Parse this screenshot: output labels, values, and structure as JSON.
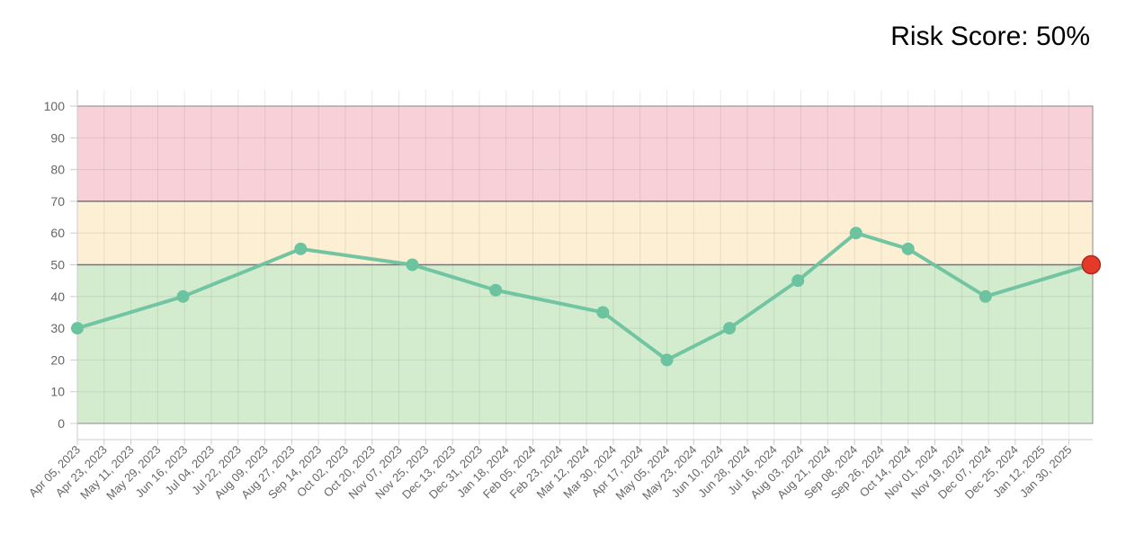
{
  "header": {
    "risk_label": "Risk Score: 50%"
  },
  "colors": {
    "zone_red": "#f8d0d8",
    "zone_yellow": "#fcefd3",
    "zone_green": "#d3ecce",
    "line": "#6cc3a0",
    "point": "#6cc3a0",
    "current_point": "#e53a2a",
    "threshold_line": "#777777",
    "grid": "#dddddd"
  },
  "chart_data": {
    "type": "line",
    "title": "",
    "xlabel": "",
    "ylabel": "",
    "ylim": [
      0,
      100
    ],
    "yticks": [
      0,
      10,
      20,
      30,
      40,
      50,
      60,
      70,
      80,
      90,
      100
    ],
    "xlim": [
      "2023-04-05",
      "2025-02-15"
    ],
    "x_tick_labels": [
      "Apr 05, 2023",
      "Apr 23, 2023",
      "May 11, 2023",
      "May 29, 2023",
      "Jun 16, 2023",
      "Jul 04, 2023",
      "Jul 22, 2023",
      "Aug 09, 2023",
      "Aug 27, 2023",
      "Sep 14, 2023",
      "Oct 02, 2023",
      "Oct 20, 2023",
      "Nov 07, 2023",
      "Nov 25, 2023",
      "Dec 13, 2023",
      "Dec 31, 2023",
      "Jan 18, 2024",
      "Feb 05, 2024",
      "Feb 23, 2024",
      "Mar 12, 2024",
      "Mar 30, 2024",
      "Apr 17, 2024",
      "May 05, 2024",
      "May 23, 2024",
      "Jun 10, 2024",
      "Jun 28, 2024",
      "Jul 16, 2024",
      "Aug 03, 2024",
      "Aug 21, 2024",
      "Sep 08, 2024",
      "Sep 26, 2024",
      "Oct 14, 2024",
      "Nov 01, 2024",
      "Nov 19, 2024",
      "Dec 07, 2024",
      "Dec 25, 2024",
      "Jan 12, 2025",
      "Jan 30, 2025"
    ],
    "zones": [
      {
        "from": 70,
        "to": 100,
        "color": "#f8d0d8"
      },
      {
        "from": 50,
        "to": 70,
        "color": "#fcefd3"
      },
      {
        "from": 0,
        "to": 50,
        "color": "#d3ecce"
      }
    ],
    "thresholds": [
      50,
      70
    ],
    "grid": true,
    "series": [
      {
        "points": [
          {
            "x": "2023-04-05",
            "y": 30
          },
          {
            "x": "2023-06-15",
            "y": 40
          },
          {
            "x": "2023-09-02",
            "y": 55
          },
          {
            "x": "2023-11-16",
            "y": 50
          },
          {
            "x": "2024-01-11",
            "y": 42
          },
          {
            "x": "2024-03-23",
            "y": 35
          },
          {
            "x": "2024-05-05",
            "y": 20
          },
          {
            "x": "2024-06-16",
            "y": 30
          },
          {
            "x": "2024-08-01",
            "y": 45
          },
          {
            "x": "2024-09-09",
            "y": 60
          },
          {
            "x": "2024-10-14",
            "y": 55
          },
          {
            "x": "2024-12-05",
            "y": 40
          },
          {
            "x": "2025-02-14",
            "y": 50
          }
        ]
      }
    ]
  }
}
